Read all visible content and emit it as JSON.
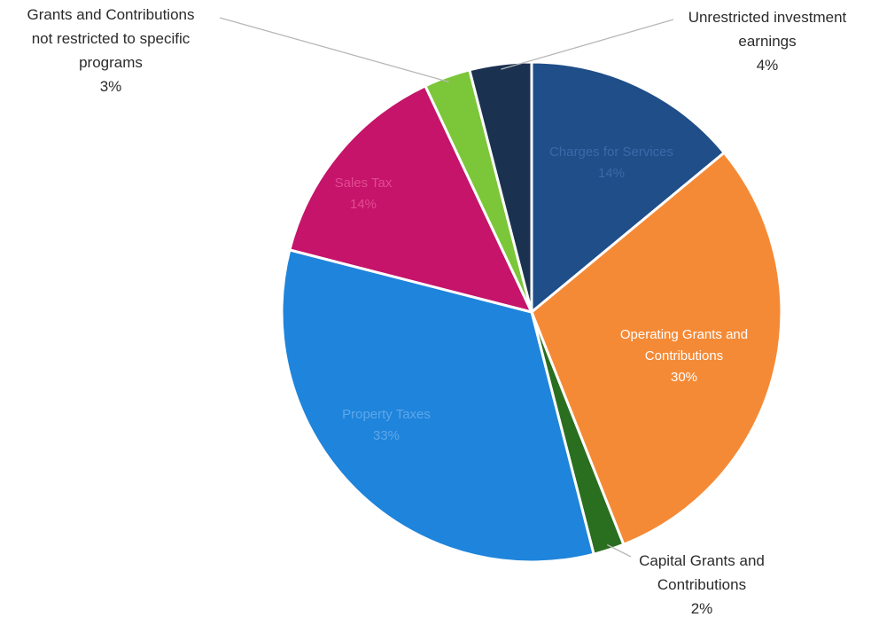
{
  "chart_data": {
    "type": "pie",
    "title": "",
    "series": [
      {
        "values": [
          {
            "label": "Charges for Services",
            "value": 14,
            "pct_label": "14%",
            "color": "#1f4e89"
          },
          {
            "label": "Operating Grants and Contributions",
            "value": 30,
            "pct_label": "30%",
            "color": "#f58a36"
          },
          {
            "label": "Capital Grants and Contributions",
            "value": 2,
            "pct_label": "2%",
            "color": "#2a6e1f"
          },
          {
            "label": "Property Taxes",
            "value": 33,
            "pct_label": "33%",
            "color": "#1f84db"
          },
          {
            "label": "Sales Tax",
            "value": 14,
            "pct_label": "14%",
            "color": "#c5146a"
          },
          {
            "label": "Grants and Contributions not restricted to specific programs",
            "value": 3,
            "pct_label": "3%",
            "color": "#7cc63a"
          },
          {
            "label": "Unrestricted investment earnings",
            "value": 4,
            "pct_label": "4%",
            "color": "#1b3150"
          }
        ]
      }
    ],
    "legend": "none"
  }
}
